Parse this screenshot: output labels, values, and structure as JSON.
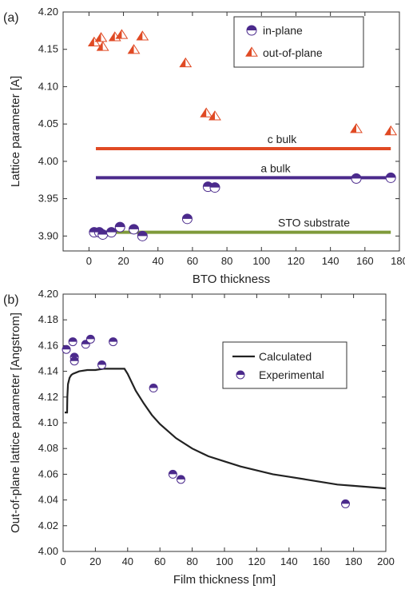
{
  "chart_data": [
    {
      "panel": "(a)",
      "type": "scatter",
      "xlabel": "BTO thickness",
      "ylabel": "Lattice parameter [A]",
      "xlim": [
        -15,
        180
      ],
      "ylim": [
        3.88,
        4.2
      ],
      "xticks": [
        "0",
        "20",
        "40",
        "60",
        "80",
        "100",
        "120",
        "140",
        "160",
        "180"
      ],
      "yticks": [
        "3.90",
        "3.95",
        "4.00",
        "4.05",
        "4.10",
        "4.15",
        "4.20"
      ],
      "grid": false,
      "legend_position": "top-right",
      "series": [
        {
          "name": "in-plane",
          "marker": "half-filled-circle",
          "color": "#4b2a8c",
          "x": [
            3,
            6,
            8,
            13,
            18,
            26,
            31,
            57,
            69,
            73,
            155,
            175
          ],
          "y": [
            3.905,
            3.905,
            3.902,
            3.905,
            3.912,
            3.909,
            3.9,
            3.923,
            3.966,
            3.965,
            3.977,
            3.978
          ]
        },
        {
          "name": "out-of-plane",
          "marker": "half-filled-triangle",
          "color": "#e04a24",
          "x": [
            3,
            7,
            8,
            15,
            19,
            26,
            31,
            56,
            68,
            73,
            155,
            175
          ],
          "y": [
            4.159,
            4.165,
            4.153,
            4.166,
            4.169,
            4.149,
            4.167,
            4.131,
            4.064,
            4.06,
            4.043,
            4.04
          ]
        }
      ],
      "reference_lines": [
        {
          "label": "c bulk",
          "y": 4.017,
          "x_start": 4,
          "x_end": 175,
          "color": "#e04a24"
        },
        {
          "label": "a bulk",
          "y": 3.978,
          "x_start": 4,
          "x_end": 175,
          "color": "#4b2a8c"
        },
        {
          "label": "STO substrate",
          "y": 3.905,
          "x_start": 4,
          "x_end": 175,
          "color": "#7f9a3a"
        }
      ]
    },
    {
      "panel": "(b)",
      "type": "line",
      "xlabel": "Film thickness [nm]",
      "ylabel": "Out-of-plane lattice parameter [Angstrom]",
      "xlim": [
        0,
        200
      ],
      "ylim": [
        4.0,
        4.2
      ],
      "xticks": [
        "0",
        "20",
        "40",
        "60",
        "80",
        "100",
        "120",
        "140",
        "160",
        "180",
        "200"
      ],
      "yticks": [
        "4.00",
        "4.02",
        "4.04",
        "4.06",
        "4.08",
        "4.10",
        "4.12",
        "4.14",
        "4.16",
        "4.18",
        "4.20"
      ],
      "grid": false,
      "legend_position": "right",
      "series": [
        {
          "name": "Calculated",
          "style": "line",
          "color": "#222222",
          "x": [
            1,
            2.5,
            2.6,
            3,
            4,
            5,
            6,
            8,
            10,
            15,
            20,
            25,
            30,
            35,
            38,
            40,
            45,
            50,
            55,
            60,
            70,
            80,
            90,
            100,
            110,
            120,
            130,
            140,
            150,
            160,
            170,
            180,
            190,
            200
          ],
          "y": [
            4.108,
            4.108,
            4.12,
            4.13,
            4.135,
            4.137,
            4.138,
            4.139,
            4.14,
            4.141,
            4.141,
            4.142,
            4.142,
            4.142,
            4.142,
            4.138,
            4.125,
            4.115,
            4.106,
            4.099,
            4.088,
            4.08,
            4.074,
            4.07,
            4.066,
            4.063,
            4.06,
            4.058,
            4.056,
            4.054,
            4.052,
            4.051,
            4.05,
            4.049
          ]
        },
        {
          "name": "Experimental",
          "style": "marker",
          "marker": "half-filled-circle",
          "color": "#4b2a8c",
          "x": [
            2,
            6,
            7,
            7,
            14,
            17,
            24,
            31,
            56,
            68,
            73,
            175
          ],
          "y": [
            4.157,
            4.163,
            4.151,
            4.148,
            4.161,
            4.165,
            4.145,
            4.163,
            4.127,
            4.06,
            4.056,
            4.037
          ]
        }
      ]
    }
  ]
}
